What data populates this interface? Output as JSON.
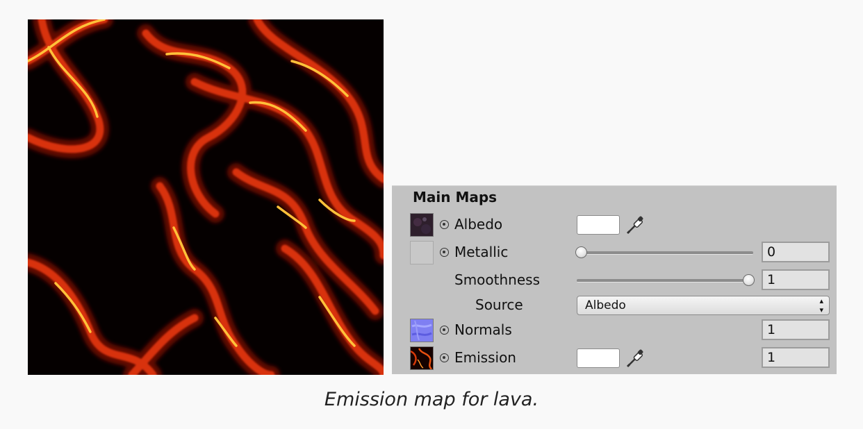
{
  "texture": {
    "icon": "lava-emission-texture"
  },
  "panel": {
    "section_title": "Main Maps",
    "albedo": {
      "label": "Albedo",
      "color": "#ffffff",
      "thumb_icon": "albedo-texture-thumbnail"
    },
    "metallic": {
      "label": "Metallic",
      "value": "0",
      "slider_fraction": 0
    },
    "smoothness": {
      "label": "Smoothness",
      "value": "1",
      "slider_fraction": 1
    },
    "source": {
      "label": "Source",
      "selected": "Albedo"
    },
    "normals": {
      "label": "Normals",
      "value": "1",
      "thumb_icon": "normal-map-thumbnail"
    },
    "emission": {
      "label": "Emission",
      "value": "1",
      "color": "#ffffff",
      "thumb_icon": "emission-texture-thumbnail"
    }
  },
  "caption": "Emission map for lava.",
  "colors": {
    "panel_bg": "#c2c2c2",
    "page_bg": "#f9f9f9",
    "lava_hot": "#ffcc33",
    "lava_mid": "#e03a0c",
    "lava_dark": "#050000"
  }
}
